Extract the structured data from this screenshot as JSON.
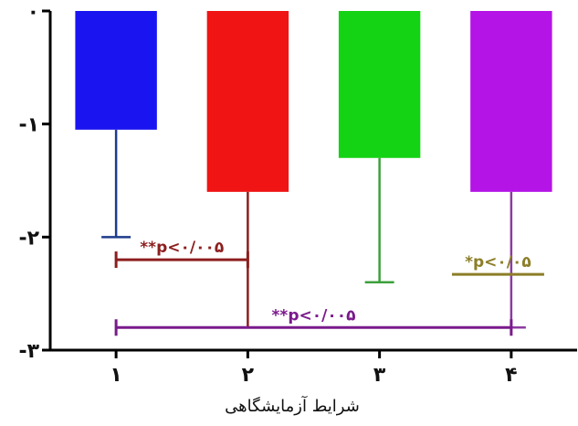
{
  "chart_data": {
    "type": "bar",
    "title": "",
    "xlabel": "شرایط آزمایشگاهی",
    "ylabel": "",
    "ylim": [
      -3,
      0
    ],
    "yticks": [
      {
        "value": 0,
        "label": "۰"
      },
      {
        "value": -1,
        "label": "-۱"
      },
      {
        "value": -2,
        "label": "-۲"
      },
      {
        "value": -3,
        "label": "-۳"
      }
    ],
    "categories": [
      "۱",
      "۲",
      "۳",
      "۴"
    ],
    "values": [
      -1.05,
      -1.6,
      -1.3,
      -1.6
    ],
    "errors": [
      0.95,
      1.2,
      1.1,
      1.2
    ],
    "colors": [
      "#1a14f0",
      "#f01414",
      "#14d214",
      "#b414e6"
    ],
    "error_colors": [
      "#1e3c8c",
      "#8c1e1e",
      "#3ca03c",
      "#8c3ca0"
    ],
    "annotations": [
      {
        "text": "**p<۰/۰۰۵",
        "from": 0,
        "to": 1,
        "y": -2.2,
        "color": "#8c1e1e",
        "caps": true
      },
      {
        "text": "*p<۰/۰۵",
        "from": 2.55,
        "to": 3.25,
        "y": -2.33,
        "color": "#8c7e28",
        "caps": false
      },
      {
        "text": "**p<۰/۰۰۵",
        "from": 0,
        "to": 3,
        "y": -2.8,
        "color": "#7a1a8c",
        "caps": true
      }
    ]
  }
}
